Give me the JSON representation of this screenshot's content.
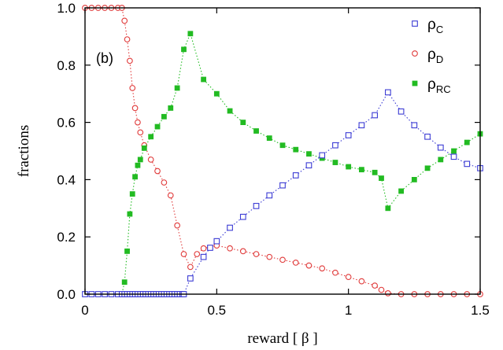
{
  "chart_data": {
    "type": "scatter",
    "panel_label": "(b)",
    "xlabel": "reward  [ β ]",
    "ylabel": "fractions",
    "xlim": [
      0,
      1.5
    ],
    "ylim": [
      0,
      1.0
    ],
    "x_ticks": [
      {
        "value": 0,
        "label": "0"
      },
      {
        "value": 0.5,
        "label": "0.5"
      },
      {
        "value": 1,
        "label": "1"
      },
      {
        "value": 1.5,
        "label": "1.5"
      }
    ],
    "y_ticks": [
      {
        "value": 0.0,
        "label": "0.0"
      },
      {
        "value": 0.2,
        "label": "0.2"
      },
      {
        "value": 0.4,
        "label": "0.4"
      },
      {
        "value": 0.6,
        "label": "0.6"
      },
      {
        "value": 0.8,
        "label": "0.8"
      },
      {
        "value": 1.0,
        "label": "1.0"
      }
    ],
    "grid": false,
    "legend_position": "top-right",
    "series": [
      {
        "name": "ρC",
        "legend_main": "ρ",
        "legend_sub": "C",
        "color": "#3b3bd4",
        "marker": "open-square",
        "points": [
          [
            0,
            0
          ],
          [
            0.025,
            0
          ],
          [
            0.05,
            0
          ],
          [
            0.075,
            0
          ],
          [
            0.1,
            0
          ],
          [
            0.125,
            0
          ],
          [
            0.14,
            0
          ],
          [
            0.15,
            0
          ],
          [
            0.16,
            0
          ],
          [
            0.17,
            0
          ],
          [
            0.18,
            0
          ],
          [
            0.19,
            0
          ],
          [
            0.2,
            0
          ],
          [
            0.21,
            0
          ],
          [
            0.22,
            0
          ],
          [
            0.23,
            0
          ],
          [
            0.24,
            0
          ],
          [
            0.25,
            0
          ],
          [
            0.26,
            0
          ],
          [
            0.27,
            0
          ],
          [
            0.28,
            0
          ],
          [
            0.29,
            0
          ],
          [
            0.3,
            0
          ],
          [
            0.31,
            0
          ],
          [
            0.32,
            0
          ],
          [
            0.33,
            0
          ],
          [
            0.34,
            0
          ],
          [
            0.35,
            0
          ],
          [
            0.36,
            0
          ],
          [
            0.37,
            0
          ],
          [
            0.375,
            0
          ],
          [
            0.4,
            0.055
          ],
          [
            0.45,
            0.13
          ],
          [
            0.475,
            0.162
          ],
          [
            0.5,
            0.185
          ],
          [
            0.55,
            0.232
          ],
          [
            0.6,
            0.27
          ],
          [
            0.65,
            0.308
          ],
          [
            0.7,
            0.345
          ],
          [
            0.75,
            0.38
          ],
          [
            0.8,
            0.415
          ],
          [
            0.85,
            0.45
          ],
          [
            0.9,
            0.485
          ],
          [
            0.95,
            0.52
          ],
          [
            1.0,
            0.555
          ],
          [
            1.05,
            0.59
          ],
          [
            1.1,
            0.625
          ],
          [
            1.15,
            0.705
          ],
          [
            1.2,
            0.638
          ],
          [
            1.25,
            0.59
          ],
          [
            1.3,
            0.55
          ],
          [
            1.35,
            0.512
          ],
          [
            1.4,
            0.48
          ],
          [
            1.45,
            0.455
          ],
          [
            1.5,
            0.44
          ]
        ]
      },
      {
        "name": "ρD",
        "legend_main": "ρ",
        "legend_sub": "D",
        "color": "#e03a3a",
        "marker": "open-circle",
        "points": [
          [
            0,
            1.0
          ],
          [
            0.025,
            1.0
          ],
          [
            0.05,
            1.0
          ],
          [
            0.075,
            1.0
          ],
          [
            0.1,
            1.0
          ],
          [
            0.125,
            1.0
          ],
          [
            0.14,
            1.0
          ],
          [
            0.15,
            0.955
          ],
          [
            0.16,
            0.89
          ],
          [
            0.17,
            0.815
          ],
          [
            0.18,
            0.72
          ],
          [
            0.19,
            0.65
          ],
          [
            0.2,
            0.6
          ],
          [
            0.21,
            0.565
          ],
          [
            0.225,
            0.52
          ],
          [
            0.25,
            0.47
          ],
          [
            0.275,
            0.43
          ],
          [
            0.3,
            0.39
          ],
          [
            0.325,
            0.345
          ],
          [
            0.35,
            0.24
          ],
          [
            0.375,
            0.14
          ],
          [
            0.4,
            0.095
          ],
          [
            0.425,
            0.14
          ],
          [
            0.45,
            0.16
          ],
          [
            0.5,
            0.17
          ],
          [
            0.55,
            0.16
          ],
          [
            0.6,
            0.15
          ],
          [
            0.65,
            0.14
          ],
          [
            0.7,
            0.13
          ],
          [
            0.75,
            0.12
          ],
          [
            0.8,
            0.11
          ],
          [
            0.85,
            0.1
          ],
          [
            0.9,
            0.09
          ],
          [
            0.95,
            0.075
          ],
          [
            1.0,
            0.06
          ],
          [
            1.05,
            0.045
          ],
          [
            1.1,
            0.03
          ],
          [
            1.125,
            0.015
          ],
          [
            1.15,
            0.003
          ],
          [
            1.2,
            0
          ],
          [
            1.25,
            0
          ],
          [
            1.3,
            0
          ],
          [
            1.35,
            0
          ],
          [
            1.4,
            0
          ],
          [
            1.45,
            0
          ],
          [
            1.5,
            0
          ]
        ]
      },
      {
        "name": "ρRC",
        "legend_main": "ρ",
        "legend_sub": "RC",
        "color": "#22bb22",
        "marker": "filled-square",
        "points": [
          [
            0,
            0
          ],
          [
            0.025,
            0
          ],
          [
            0.05,
            0
          ],
          [
            0.075,
            0
          ],
          [
            0.1,
            0
          ],
          [
            0.125,
            0
          ],
          [
            0.14,
            0
          ],
          [
            0.15,
            0.042
          ],
          [
            0.16,
            0.15
          ],
          [
            0.17,
            0.28
          ],
          [
            0.18,
            0.35
          ],
          [
            0.19,
            0.41
          ],
          [
            0.2,
            0.45
          ],
          [
            0.21,
            0.47
          ],
          [
            0.225,
            0.51
          ],
          [
            0.25,
            0.55
          ],
          [
            0.275,
            0.585
          ],
          [
            0.3,
            0.62
          ],
          [
            0.325,
            0.65
          ],
          [
            0.35,
            0.72
          ],
          [
            0.375,
            0.855
          ],
          [
            0.4,
            0.91
          ],
          [
            0.45,
            0.75
          ],
          [
            0.5,
            0.7
          ],
          [
            0.55,
            0.64
          ],
          [
            0.6,
            0.6
          ],
          [
            0.65,
            0.57
          ],
          [
            0.7,
            0.545
          ],
          [
            0.75,
            0.52
          ],
          [
            0.8,
            0.505
          ],
          [
            0.85,
            0.49
          ],
          [
            0.9,
            0.475
          ],
          [
            0.95,
            0.46
          ],
          [
            1.0,
            0.445
          ],
          [
            1.05,
            0.435
          ],
          [
            1.1,
            0.425
          ],
          [
            1.125,
            0.405
          ],
          [
            1.15,
            0.3
          ],
          [
            1.2,
            0.36
          ],
          [
            1.25,
            0.4
          ],
          [
            1.3,
            0.44
          ],
          [
            1.35,
            0.47
          ],
          [
            1.4,
            0.5
          ],
          [
            1.45,
            0.53
          ],
          [
            1.5,
            0.56
          ]
        ]
      }
    ]
  }
}
